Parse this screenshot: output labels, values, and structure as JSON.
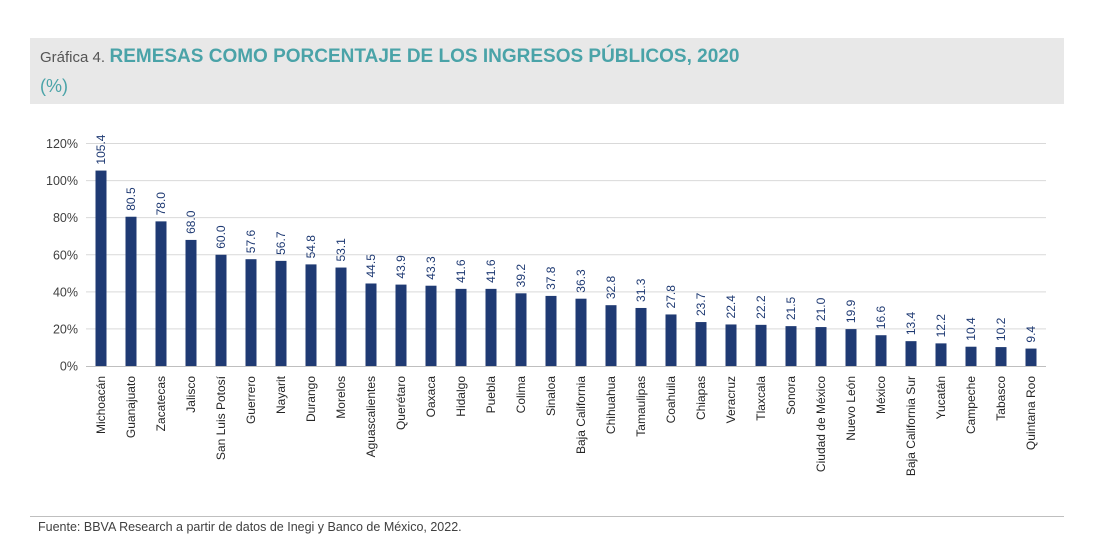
{
  "header": {
    "prefix": "Gráfica 4.",
    "title": "REMESAS COMO PORCENTAJE DE LOS INGRESOS PÚBLICOS, 2020",
    "unit": "(%)"
  },
  "footer": {
    "source": "Fuente: BBVA Research a partir de datos de Inegi y Banco de México, 2022."
  },
  "colors": {
    "bar": "#1f3a73",
    "accent": "#4aa3a8",
    "grid": "#d9d9d9"
  },
  "chart_data": {
    "type": "bar",
    "title": "REMESAS COMO PORCENTAJE DE LOS INGRESOS PÚBLICOS, 2020",
    "ylim": [
      0,
      120
    ],
    "yticks": [
      "0%",
      "20%",
      "40%",
      "60%",
      "80%",
      "100%",
      "120%"
    ],
    "ytick_values": [
      0,
      20,
      40,
      60,
      80,
      100,
      120
    ],
    "grid": true,
    "categories": [
      "Michoacán",
      "Guanajuato",
      "Zacatecas",
      "Jalisco",
      "San Luis Potosí",
      "Guerrero",
      "Nayarit",
      "Durango",
      "Morelos",
      "Aguascalientes",
      "Querétaro",
      "Oaxaca",
      "Hidalgo",
      "Puebla",
      "Colima",
      "Sinaloa",
      "Baja California",
      "Chihuahua",
      "Tamaulipas",
      "Coahuila",
      "Chiapas",
      "Veracruz",
      "Tlaxcala",
      "Sonora",
      "Ciudad de México",
      "Nuevo León",
      "México",
      "Baja California Sur",
      "Yucatán",
      "Campeche",
      "Tabasco",
      "Quintana Roo"
    ],
    "values": [
      105.4,
      80.5,
      78.0,
      68.0,
      60.0,
      57.6,
      56.7,
      54.8,
      53.1,
      44.5,
      43.9,
      43.3,
      41.6,
      41.6,
      39.2,
      37.8,
      36.3,
      32.8,
      31.3,
      27.8,
      23.7,
      22.4,
      22.2,
      21.5,
      21.0,
      19.9,
      16.6,
      13.4,
      12.2,
      10.4,
      10.2,
      9.4
    ],
    "labels": [
      "105.4",
      "80.5",
      "78.0",
      "68.0",
      "60.0",
      "57.6",
      "56.7",
      "54.8",
      "53.1",
      "44.5",
      "43.9",
      "43.3",
      "41.6",
      "41.6",
      "39.2",
      "37.8",
      "36.3",
      "32.8",
      "31.3",
      "27.8",
      "23.7",
      "22.4",
      "22.2",
      "21.5",
      "21.0",
      "19.9",
      "16.6",
      "13.4",
      "12.2",
      "10.4",
      "10.2",
      "9.4"
    ]
  }
}
